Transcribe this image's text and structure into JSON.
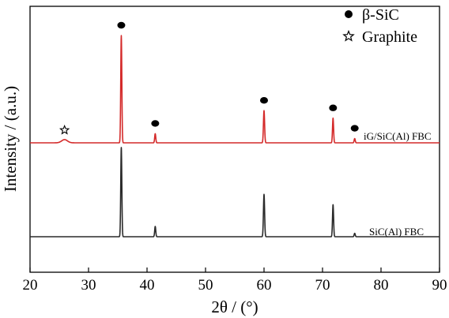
{
  "chart_data": {
    "type": "line",
    "title": "",
    "xlabel": "2θ / (°)",
    "ylabel": "Intensity / (a.u.)",
    "xlim": [
      20,
      90
    ],
    "xticks": [
      20,
      30,
      40,
      50,
      60,
      70,
      80,
      90
    ],
    "y_ticks_shown": false,
    "grid": false,
    "legend": {
      "placement": "top-right",
      "entries": [
        {
          "marker": "filled-circle",
          "label": "β-SiC"
        },
        {
          "marker": "open-star",
          "label": "Graphite"
        }
      ]
    },
    "series": [
      {
        "name": "iG/SiC(Al) FBC",
        "color": "#d42a2a",
        "baseline": 0.72,
        "peaks": [
          {
            "x": 25.9,
            "height": 0.03,
            "width": 0.7
          },
          {
            "x": 35.6,
            "height": 1.0,
            "width": 0.13
          },
          {
            "x": 41.4,
            "height": 0.085,
            "width": 0.13
          },
          {
            "x": 60.0,
            "height": 0.3,
            "width": 0.14
          },
          {
            "x": 71.8,
            "height": 0.23,
            "width": 0.13
          },
          {
            "x": 75.5,
            "height": 0.04,
            "width": 0.13
          }
        ],
        "markers": [
          {
            "x": 25.9,
            "symbol": "open-star"
          },
          {
            "x": 35.6,
            "symbol": "filled-circle"
          },
          {
            "x": 41.4,
            "symbol": "filled-circle"
          },
          {
            "x": 60.0,
            "symbol": "filled-circle"
          },
          {
            "x": 71.8,
            "symbol": "filled-circle"
          },
          {
            "x": 75.5,
            "symbol": "filled-circle"
          }
        ]
      },
      {
        "name": "SiC(Al) FBC",
        "color": "#2a2a2a",
        "baseline": 0.0,
        "peaks": [
          {
            "x": 35.6,
            "height": 0.78,
            "width": 0.13
          },
          {
            "x": 41.4,
            "height": 0.09,
            "width": 0.13
          },
          {
            "x": 60.0,
            "height": 0.37,
            "width": 0.14
          },
          {
            "x": 71.8,
            "height": 0.28,
            "width": 0.13
          },
          {
            "x": 75.5,
            "height": 0.03,
            "width": 0.13
          }
        ],
        "markers": []
      }
    ]
  }
}
